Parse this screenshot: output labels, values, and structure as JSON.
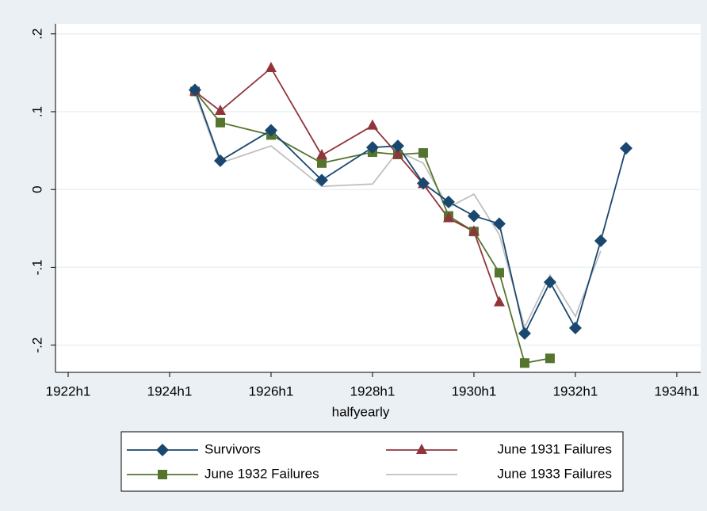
{
  "chart_data": {
    "type": "line",
    "x": [
      1924.5,
      1925,
      1926,
      1927,
      1928,
      1928.5,
      1929,
      1929.5,
      1930,
      1930.5,
      1931,
      1931.5,
      1932,
      1932.5,
      1933
    ],
    "series": [
      {
        "name": "Survivors",
        "color": "#1a476f",
        "marker": "diamond",
        "values": [
          0.128,
          0.037,
          0.076,
          0.012,
          0.054,
          0.056,
          0.008,
          -0.016,
          -0.034,
          -0.044,
          -0.185,
          -0.119,
          -0.178,
          -0.066,
          0.053
        ]
      },
      {
        "name": "June 1931 Failures",
        "color": "#90353b",
        "marker": "triangle",
        "values": [
          0.126,
          0.101,
          0.156,
          0.044,
          0.082,
          0.045,
          0.007,
          -0.037,
          -0.054,
          -0.145,
          null,
          null,
          null,
          null,
          null
        ]
      },
      {
        "name": "June 1932 Failures",
        "color": "#55752f",
        "marker": "square",
        "values": [
          0.126,
          0.086,
          0.07,
          0.034,
          0.048,
          0.045,
          0.047,
          -0.034,
          -0.054,
          -0.107,
          -0.223,
          -0.217,
          null,
          null,
          null
        ]
      },
      {
        "name": "June 1933 Failures",
        "color": "#c0c0c0",
        "marker": "none",
        "values": [
          0.124,
          0.034,
          0.056,
          0.004,
          0.007,
          0.049,
          0.034,
          -0.023,
          -0.006,
          -0.058,
          -0.177,
          -0.11,
          -0.163,
          -0.079,
          null
        ]
      }
    ],
    "x_label": "halfyearly",
    "xlim": [
      1921.75,
      1934.47
    ],
    "xticks": [
      {
        "value": 1922,
        "label": "1922h1"
      },
      {
        "value": 1924,
        "label": "1924h1"
      },
      {
        "value": 1926,
        "label": "1926h1"
      },
      {
        "value": 1928,
        "label": "1928h1"
      },
      {
        "value": 1930,
        "label": "1930h1"
      },
      {
        "value": 1932,
        "label": "1932h1"
      },
      {
        "value": 1934,
        "label": "1934h1"
      }
    ],
    "ylim": [
      -0.235,
      0.213
    ],
    "yticks": [
      {
        "value": -0.2,
        "label": "-.2"
      },
      {
        "value": -0.1,
        "label": "-.1"
      },
      0,
      {
        "value": 0.1,
        "label": ".1"
      },
      {
        "value": 0.2,
        "label": ".2"
      }
    ],
    "grid": true,
    "legend_position": "bottom"
  }
}
